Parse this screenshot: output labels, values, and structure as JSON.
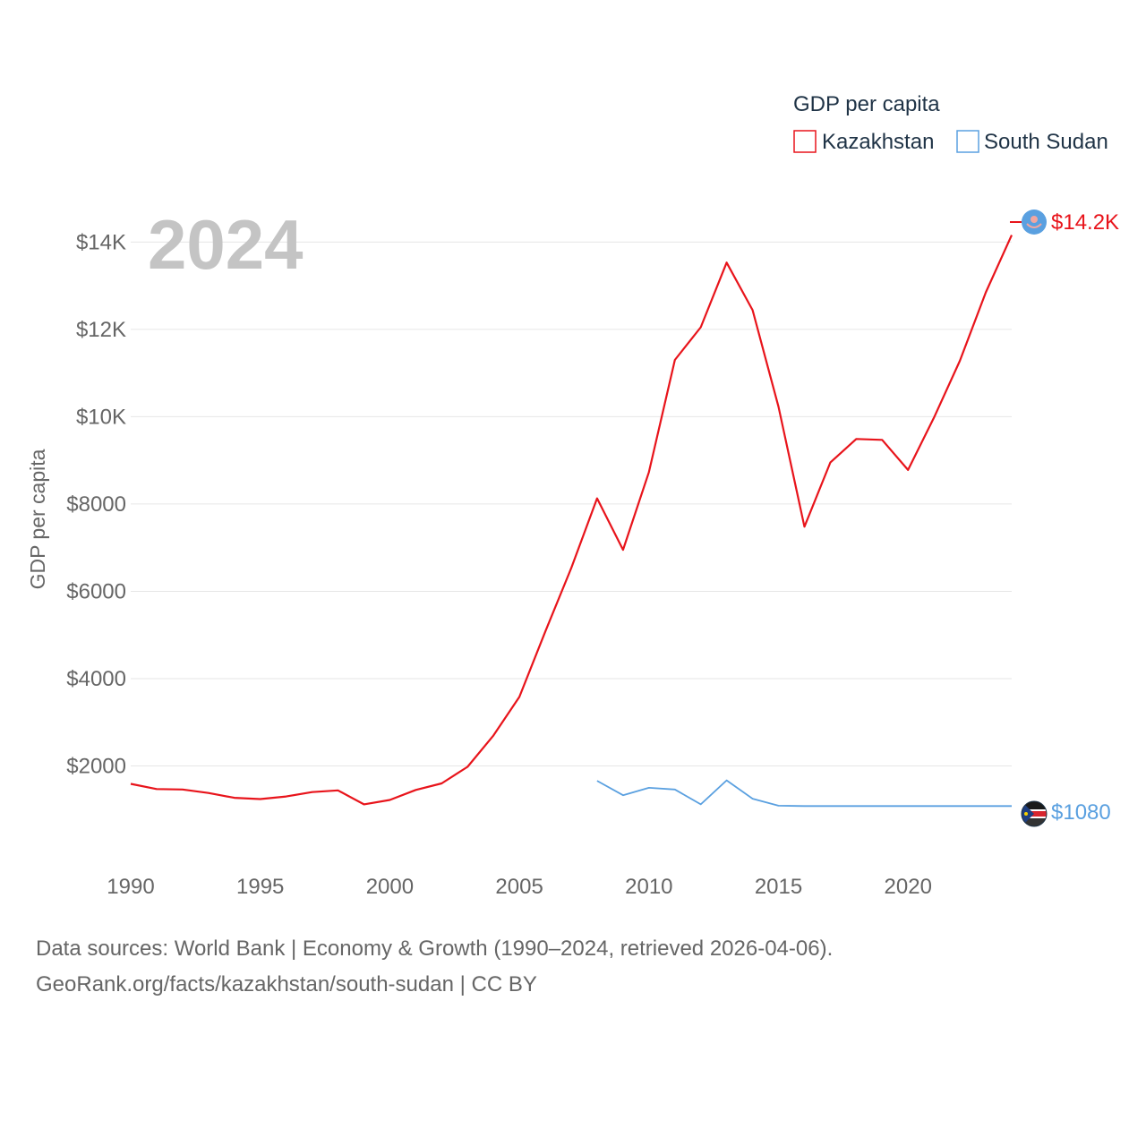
{
  "chart_data": {
    "type": "line",
    "year_label": "2024",
    "legend_title": "GDP per capita",
    "ylabel": "GDP per capita",
    "xlabel": "",
    "xlim": [
      1990,
      2024
    ],
    "ylim": [
      0,
      14500
    ],
    "x_ticks": [
      1990,
      1995,
      2000,
      2005,
      2010,
      2015,
      2020
    ],
    "y_ticks": [
      {
        "value": 2000,
        "label": "$2000"
      },
      {
        "value": 4000,
        "label": "$4000"
      },
      {
        "value": 6000,
        "label": "$6000"
      },
      {
        "value": 8000,
        "label": "$8000"
      },
      {
        "value": 10000,
        "label": "$10K"
      },
      {
        "value": 12000,
        "label": "$12K"
      },
      {
        "value": 14000,
        "label": "$14K"
      }
    ],
    "grid": true,
    "legend_position": "top-right",
    "series": [
      {
        "name": "Kazakhstan",
        "color": "#e8141b",
        "end_label": "$14.2K",
        "x": [
          1990,
          1991,
          1992,
          1993,
          1994,
          1995,
          1996,
          1997,
          1998,
          1999,
          2000,
          2001,
          2002,
          2003,
          2004,
          2005,
          2006,
          2007,
          2008,
          2009,
          2010,
          2011,
          2012,
          2013,
          2014,
          2015,
          2016,
          2017,
          2018,
          2019,
          2020,
          2021,
          2022,
          2023,
          2024
        ],
        "values": [
          1590,
          1470,
          1460,
          1380,
          1270,
          1240,
          1300,
          1400,
          1440,
          1120,
          1220,
          1450,
          1600,
          1980,
          2700,
          3580,
          5080,
          6530,
          8130,
          6950,
          8730,
          11300,
          12050,
          13530,
          12440,
          10230,
          7480,
          8950,
          9490,
          9470,
          8780,
          9980,
          11280,
          12850,
          14160
        ]
      },
      {
        "name": "South Sudan",
        "color": "#5aa0e0",
        "end_label": "$1080",
        "x": [
          2008,
          2009,
          2010,
          2011,
          2012,
          2013,
          2014,
          2015,
          2016,
          2017,
          2018,
          2019,
          2020,
          2021,
          2022,
          2023,
          2024
        ],
        "values": [
          1660,
          1330,
          1500,
          1460,
          1120,
          1670,
          1250,
          1090,
          1080,
          1080,
          1080,
          1080,
          1080,
          1080,
          1080,
          1080,
          1080
        ]
      }
    ]
  },
  "footer": {
    "line1": "Data sources: World Bank | Economy & Growth (1990–2024, retrieved 2026-04-06).",
    "line2": "GeoRank.org/facts/kazakhstan/south-sudan | CC BY"
  }
}
